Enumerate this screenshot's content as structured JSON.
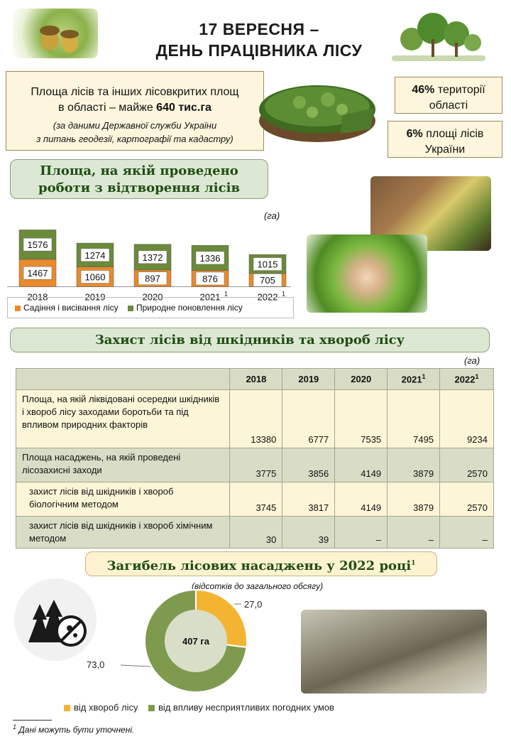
{
  "header": {
    "title_line1": "17 ВЕРЕСНЯ –",
    "title_line2": "ДЕНЬ ПРАЦІВНИКА ЛІСУ"
  },
  "forest_area": {
    "line1": "Площа лісів та інших лісовкритих площ",
    "line2_prefix": "в області – майже ",
    "line2_value": "640 тис.га",
    "source_line1": "(за даними Державної служби України",
    "source_line2": "з питань геодезії, картографії та кадастру)",
    "stat1_value": "46%",
    "stat1_text": "території області",
    "stat2_value": "6%",
    "stat2_text": "площі лісів України"
  },
  "reforestation": {
    "banner_line1": "Площа, на якій проведено",
    "banner_line2": "роботи з відтворення лісів",
    "unit": "(га)"
  },
  "pest": {
    "banner": "Захист лісів від шкідників та хвороб лісу",
    "unit": "(га)",
    "years": [
      "2018",
      "2019",
      "2020",
      "2021",
      "2022"
    ],
    "rows": [
      {
        "label": "Площа, на якій ліквідовані осередки шкідників і хвороб лісу заходами боротьби та під впливом природних факторів",
        "values": [
          "13380",
          "6777",
          "7535",
          "7495",
          "9234"
        ]
      },
      {
        "label": "Площа насаджень, на якій проведені лісозахисні заходи",
        "values": [
          "3775",
          "3856",
          "4149",
          "3879",
          "2570"
        ]
      },
      {
        "label": "захист лісів від шкідників і хвороб біологічним методом",
        "values": [
          "3745",
          "3817",
          "4149",
          "3879",
          "2570"
        ]
      },
      {
        "label": "захист лісів від шкідників і хвороб хімічним методом",
        "values": [
          "30",
          "39",
          "–",
          "–",
          "–"
        ]
      }
    ]
  },
  "loss": {
    "banner": "Загибель лісових насаджень у 2022 році",
    "note": "(відсотків до загального обсягу)",
    "center_label": "407 га"
  },
  "footnote": {
    "mark": "1",
    "text": "Дані можуть бути уточнені."
  },
  "colors": {
    "planting": "#e98a2c",
    "natural": "#6b8a3a",
    "disease": "#f3b431",
    "weather": "#7e9a4e"
  },
  "chart_data": [
    {
      "type": "bar",
      "stacked": true,
      "categories": [
        "2018",
        "2019",
        "2020",
        "2021",
        "2022"
      ],
      "category_superscripts": [
        "",
        "",
        "",
        "1",
        "1"
      ],
      "series": [
        {
          "name": "Садіння і висівання лісу",
          "values": [
            1467,
            1060,
            897,
            876,
            705
          ]
        },
        {
          "name": "Природне поновлення лісу",
          "values": [
            1576,
            1274,
            1372,
            1336,
            1015
          ]
        }
      ],
      "ylabel": "(га)",
      "legend": "bottom"
    },
    {
      "type": "pie",
      "donut": true,
      "labels": [
        "від хвороб лісу",
        "від впливу несприятливих погодних умов"
      ],
      "values": [
        27.0,
        73.0
      ],
      "value_labels": [
        "27,0",
        "73,0"
      ],
      "legend": "bottom"
    }
  ]
}
